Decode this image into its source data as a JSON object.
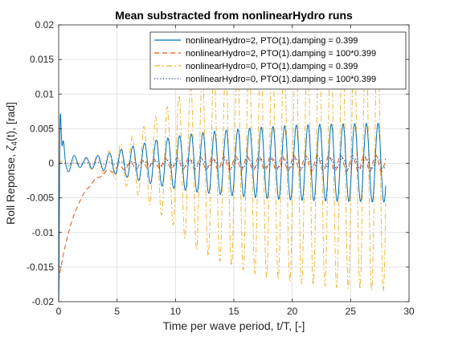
{
  "chart_data": {
    "type": "line",
    "title": "Mean substracted from nonlinearHydro runs",
    "xlabel": "Time per wave period, t/T, [-]",
    "ylabel": "Roll Reponse, ζ4(t), [rad]",
    "ylabel_main": "Roll Reponse, ",
    "ylabel_symbol": "ζ",
    "ylabel_sub": "4",
    "ylabel_tail": "(t), [rad]",
    "xlim": [
      0,
      30
    ],
    "ylim": [
      -0.02,
      0.02
    ],
    "xticks": [
      0,
      5,
      10,
      15,
      20,
      25,
      30
    ],
    "yticks": [
      -0.02,
      -0.015,
      -0.01,
      -0.005,
      0,
      0.005,
      0.01,
      0.015,
      0.02
    ],
    "xtick_labels": [
      "0",
      "5",
      "10",
      "15",
      "20",
      "25",
      "30"
    ],
    "ytick_labels": [
      "-0.02",
      "-0.015",
      "-0.01",
      "-0.005",
      "0",
      "0.005",
      "0.01",
      "0.015",
      "0.02"
    ],
    "grid": true,
    "legend_position": "top-right",
    "t_end": 28,
    "series": [
      {
        "name": "nonlinearHydro=2, PTO(1).damping = 0.399",
        "color": "#0072BD",
        "style": "solid",
        "envelope": [
          [
            0,
            0.009
          ],
          [
            0.3,
            0.004
          ],
          [
            0.6,
            0.0015
          ],
          [
            2,
            0.0006
          ],
          [
            4,
            0.0012
          ],
          [
            6,
            0.0022
          ],
          [
            8,
            0.0031
          ],
          [
            10,
            0.0038
          ],
          [
            12,
            0.0043
          ],
          [
            15,
            0.0048
          ],
          [
            18,
            0.0052
          ],
          [
            20,
            0.0054
          ],
          [
            24,
            0.0056
          ],
          [
            28,
            0.0057
          ]
        ],
        "offset": 0.0001
      },
      {
        "name": "nonlinearHydro=2, PTO(1).damping = 100*0.399",
        "color": "#D95319",
        "style": "dashed",
        "initial": -0.017,
        "decay_tau": 1.6,
        "envelope": [
          [
            0,
            0.0
          ],
          [
            3,
            0.0001
          ],
          [
            5,
            0.0004
          ],
          [
            8,
            0.0007
          ],
          [
            12,
            0.0009
          ],
          [
            16,
            0.001
          ],
          [
            20,
            0.0011
          ],
          [
            28,
            0.0012
          ]
        ],
        "offset": 0.0
      },
      {
        "name": "nonlinearHydro=0, PTO(1).damping = 0.399",
        "color": "#EDB120",
        "style": "dashdot",
        "envelope": [
          [
            0,
            0.0003
          ],
          [
            2,
            0.0005
          ],
          [
            4,
            0.0015
          ],
          [
            6,
            0.0035
          ],
          [
            8,
            0.0063
          ],
          [
            10,
            0.0092
          ],
          [
            11,
            0.0112
          ],
          [
            12,
            0.0128
          ],
          [
            14,
            0.0143
          ],
          [
            16,
            0.0155
          ],
          [
            18,
            0.0165
          ],
          [
            20,
            0.0172
          ],
          [
            24,
            0.018
          ],
          [
            28,
            0.0185
          ]
        ],
        "offset": 0.0
      },
      {
        "name": "nonlinearHydro=0, PTO(1).damping = 100*0.399",
        "color": "#1F3A93",
        "style": "dotted",
        "envelope": [
          [
            0,
            0.0
          ],
          [
            5,
            0.0002
          ],
          [
            10,
            0.0004
          ],
          [
            15,
            0.0006
          ],
          [
            20,
            0.0007
          ],
          [
            28,
            0.0008
          ]
        ],
        "offset": 0.0
      }
    ]
  }
}
